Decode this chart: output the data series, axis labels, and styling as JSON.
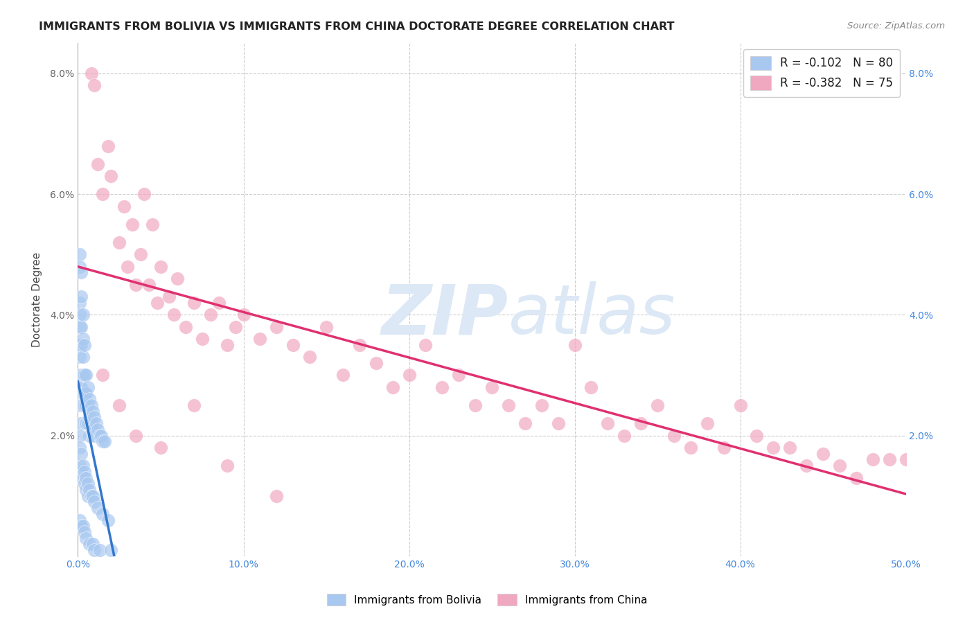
{
  "title": "IMMIGRANTS FROM BOLIVIA VS IMMIGRANTS FROM CHINA DOCTORATE DEGREE CORRELATION CHART",
  "source": "Source: ZipAtlas.com",
  "ylabel": "Doctorate Degree",
  "xlim": [
    0.0,
    0.5
  ],
  "ylim": [
    0.0,
    0.085
  ],
  "x_ticks": [
    0.0,
    0.1,
    0.2,
    0.3,
    0.4,
    0.5
  ],
  "y_ticks": [
    0.0,
    0.02,
    0.04,
    0.06,
    0.08
  ],
  "x_tick_labels": [
    "0.0%",
    "10.0%",
    "20.0%",
    "30.0%",
    "40.0%",
    "50.0%"
  ],
  "y_tick_labels_left": [
    "",
    "2.0%",
    "4.0%",
    "6.0%",
    "8.0%"
  ],
  "y_tick_labels_right": [
    "",
    "2.0%",
    "4.0%",
    "6.0%",
    "8.0%"
  ],
  "R_bolivia": -0.102,
  "N_bolivia": 80,
  "R_china": -0.382,
  "N_china": 75,
  "color_bolivia": "#a8c8f0",
  "color_china": "#f0a8c0",
  "line_color_bolivia": "#3377cc",
  "line_color_china": "#e03070",
  "line_color_dashed": "#90b8d8",
  "watermark_zip": "ZIP",
  "watermark_atlas": "atlas",
  "watermark_color": "#dce8f5",
  "grid_color": "#cccccc",
  "border_color": "#aaaaaa",
  "title_color": "#222222",
  "source_color": "#888888",
  "ylabel_color": "#444444",
  "tick_color_left": "#666666",
  "tick_color_right": "#4488dd",
  "tick_color_x": "#4488dd",
  "legend_edge_color": "#cccccc",
  "bolivia_x": [
    0.001,
    0.001,
    0.001,
    0.001,
    0.001,
    0.001,
    0.001,
    0.001,
    0.001,
    0.001,
    0.002,
    0.002,
    0.002,
    0.002,
    0.002,
    0.002,
    0.002,
    0.002,
    0.003,
    0.003,
    0.003,
    0.003,
    0.003,
    0.003,
    0.004,
    0.004,
    0.004,
    0.004,
    0.005,
    0.005,
    0.005,
    0.005,
    0.006,
    0.006,
    0.006,
    0.007,
    0.007,
    0.007,
    0.008,
    0.008,
    0.009,
    0.009,
    0.01,
    0.01,
    0.011,
    0.012,
    0.013,
    0.014,
    0.015,
    0.016,
    0.001,
    0.001,
    0.001,
    0.002,
    0.002,
    0.003,
    0.003,
    0.004,
    0.004,
    0.005,
    0.005,
    0.006,
    0.006,
    0.007,
    0.008,
    0.009,
    0.01,
    0.012,
    0.015,
    0.018,
    0.001,
    0.002,
    0.003,
    0.004,
    0.005,
    0.007,
    0.009,
    0.01,
    0.013,
    0.02
  ],
  "bolivia_y": [
    0.05,
    0.048,
    0.042,
    0.04,
    0.038,
    0.035,
    0.033,
    0.03,
    0.028,
    0.025,
    0.047,
    0.043,
    0.038,
    0.035,
    0.03,
    0.028,
    0.025,
    0.022,
    0.04,
    0.036,
    0.033,
    0.03,
    0.027,
    0.025,
    0.035,
    0.03,
    0.027,
    0.025,
    0.03,
    0.027,
    0.025,
    0.022,
    0.028,
    0.025,
    0.022,
    0.026,
    0.023,
    0.02,
    0.025,
    0.022,
    0.024,
    0.021,
    0.023,
    0.02,
    0.022,
    0.021,
    0.02,
    0.02,
    0.019,
    0.019,
    0.02,
    0.018,
    0.015,
    0.017,
    0.014,
    0.015,
    0.013,
    0.014,
    0.012,
    0.013,
    0.011,
    0.012,
    0.01,
    0.011,
    0.01,
    0.01,
    0.009,
    0.008,
    0.007,
    0.006,
    0.006,
    0.005,
    0.005,
    0.004,
    0.003,
    0.002,
    0.002,
    0.001,
    0.001,
    0.001
  ],
  "china_x": [
    0.008,
    0.01,
    0.012,
    0.015,
    0.018,
    0.02,
    0.025,
    0.028,
    0.03,
    0.033,
    0.035,
    0.038,
    0.04,
    0.043,
    0.045,
    0.048,
    0.05,
    0.055,
    0.058,
    0.06,
    0.065,
    0.07,
    0.075,
    0.08,
    0.085,
    0.09,
    0.095,
    0.1,
    0.11,
    0.12,
    0.13,
    0.14,
    0.15,
    0.16,
    0.17,
    0.18,
    0.19,
    0.2,
    0.21,
    0.22,
    0.23,
    0.24,
    0.25,
    0.26,
    0.27,
    0.28,
    0.29,
    0.3,
    0.31,
    0.32,
    0.33,
    0.34,
    0.35,
    0.36,
    0.37,
    0.38,
    0.39,
    0.4,
    0.41,
    0.42,
    0.43,
    0.44,
    0.45,
    0.46,
    0.47,
    0.48,
    0.49,
    0.5,
    0.015,
    0.025,
    0.035,
    0.05,
    0.07,
    0.09,
    0.12
  ],
  "china_y": [
    0.08,
    0.078,
    0.065,
    0.06,
    0.068,
    0.063,
    0.052,
    0.058,
    0.048,
    0.055,
    0.045,
    0.05,
    0.06,
    0.045,
    0.055,
    0.042,
    0.048,
    0.043,
    0.04,
    0.046,
    0.038,
    0.042,
    0.036,
    0.04,
    0.042,
    0.035,
    0.038,
    0.04,
    0.036,
    0.038,
    0.035,
    0.033,
    0.038,
    0.03,
    0.035,
    0.032,
    0.028,
    0.03,
    0.035,
    0.028,
    0.03,
    0.025,
    0.028,
    0.025,
    0.022,
    0.025,
    0.022,
    0.035,
    0.028,
    0.022,
    0.02,
    0.022,
    0.025,
    0.02,
    0.018,
    0.022,
    0.018,
    0.025,
    0.02,
    0.018,
    0.018,
    0.015,
    0.017,
    0.015,
    0.013,
    0.016,
    0.016,
    0.016,
    0.03,
    0.025,
    0.02,
    0.018,
    0.025,
    0.015,
    0.01
  ]
}
